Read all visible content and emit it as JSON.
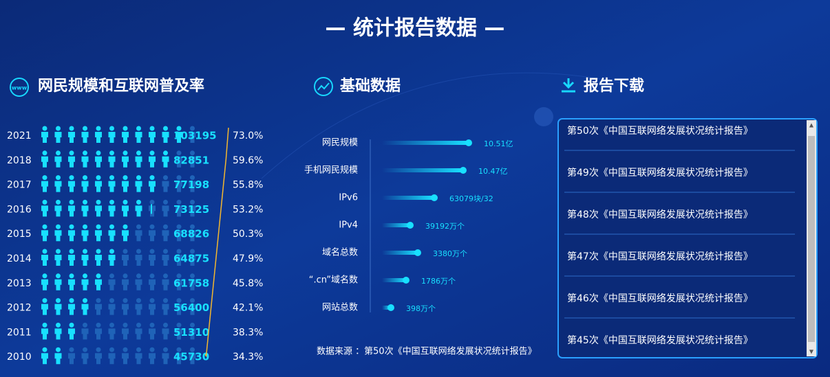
{
  "header": {
    "title": "— 统计报告数据 —"
  },
  "netizens": {
    "title": "网民规模和互联网普及率",
    "rows": [
      {
        "year": "2021",
        "count": "103195",
        "rate": "73.0%"
      },
      {
        "year": "2018",
        "count": "82851",
        "rate": "59.6%"
      },
      {
        "year": "2017",
        "count": "77198",
        "rate": "55.8%"
      },
      {
        "year": "2016",
        "count": "73125",
        "rate": "53.2%"
      },
      {
        "year": "2015",
        "count": "68826",
        "rate": "50.3%"
      },
      {
        "year": "2014",
        "count": "64875",
        "rate": "47.9%"
      },
      {
        "year": "2013",
        "count": "61758",
        "rate": "45.8%"
      },
      {
        "year": "2012",
        "count": "56400",
        "rate": "42.1%"
      },
      {
        "year": "2011",
        "count": "51310",
        "rate": "38.3%"
      },
      {
        "year": "2010",
        "count": "45730",
        "rate": "34.3%"
      }
    ]
  },
  "basics": {
    "title": "基础数据",
    "items": [
      {
        "label": "网民规模",
        "value": "10.51亿"
      },
      {
        "label": "手机网民规模",
        "value": "10.47亿"
      },
      {
        "label": "IPv6",
        "value": "63079块/32"
      },
      {
        "label": "IPv4",
        "value": "39192万个"
      },
      {
        "label": "域名总数",
        "value": "3380万个"
      },
      {
        "label": "“.cn”域名数",
        "value": "1786万个"
      },
      {
        "label": "网站总数",
        "value": "398万个"
      }
    ],
    "source": "数据来源 ：第50次《中国互联网络发展状况统计报告》"
  },
  "downloads": {
    "title": "报告下载",
    "items": [
      "第50次《中国互联网络发展状况统计报告》",
      "第49次《中国互联网络发展状况统计报告》",
      "第48次《中国互联网络发展状况统计报告》",
      "第47次《中国互联网络发展状况统计报告》",
      "第46次《中国互联网络发展状况统计报告》",
      "第45次《中国互联网络发展状况统计报告》"
    ]
  }
}
